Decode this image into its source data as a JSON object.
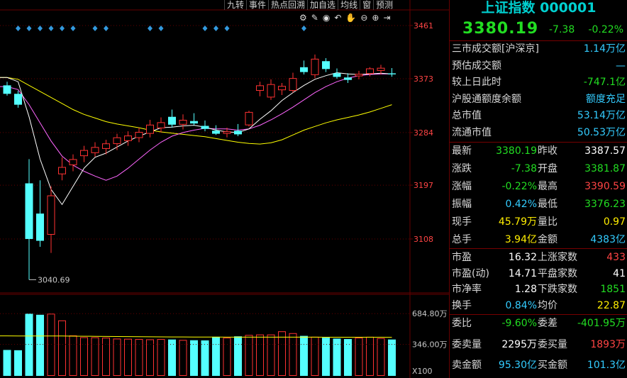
{
  "toolbar": {
    "items": [
      "九转",
      "事件",
      "热点回溯",
      "加自选",
      "均线",
      "窗",
      "预测"
    ]
  },
  "icons": [
    "settings-icon",
    "draw-icon",
    "eye-icon",
    "undo-icon",
    "hand-icon",
    "zoom-out-icon",
    "zoom-in-icon",
    "exit-icon"
  ],
  "colors": {
    "up": "#ff3232",
    "down": "#54ffff",
    "ma5": "#ffffff",
    "ma10": "#ff66ff",
    "ma20": "#ffff00",
    "vol_ma": "#ffff00",
    "grid": "#660000",
    "label": "#ff4444",
    "marker": "#3399dd"
  },
  "chart_data": {
    "type": "candlestick",
    "yticks": [
      3461,
      3373,
      3284,
      3197,
      3108
    ],
    "ylim": [
      3020,
      3475
    ],
    "annotation_low": "3040.69",
    "candles": [
      {
        "o": 3362,
        "h": 3368,
        "l": 3345,
        "c": 3348
      },
      {
        "o": 3348,
        "h": 3353,
        "l": 3325,
        "c": 3330
      },
      {
        "o": 3200,
        "h": 3240,
        "l": 3040.69,
        "c": 3108
      },
      {
        "o": 3150,
        "h": 3205,
        "l": 3095,
        "c": 3105
      },
      {
        "o": 3115,
        "h": 3195,
        "l": 3085,
        "c": 3180
      },
      {
        "o": 3215,
        "h": 3243,
        "l": 3205,
        "c": 3227
      },
      {
        "o": 3230,
        "h": 3248,
        "l": 3220,
        "c": 3240
      },
      {
        "o": 3245,
        "h": 3262,
        "l": 3235,
        "c": 3255
      },
      {
        "o": 3250,
        "h": 3268,
        "l": 3244,
        "c": 3260
      },
      {
        "o": 3257,
        "h": 3272,
        "l": 3248,
        "c": 3266
      },
      {
        "o": 3265,
        "h": 3282,
        "l": 3255,
        "c": 3276
      },
      {
        "o": 3270,
        "h": 3286,
        "l": 3262,
        "c": 3279
      },
      {
        "o": 3275,
        "h": 3292,
        "l": 3268,
        "c": 3285
      },
      {
        "o": 3282,
        "h": 3305,
        "l": 3276,
        "c": 3297
      },
      {
        "o": 3291,
        "h": 3309,
        "l": 3284,
        "c": 3301
      },
      {
        "o": 3310,
        "h": 3322,
        "l": 3292,
        "c": 3297
      },
      {
        "o": 3297,
        "h": 3314,
        "l": 3289,
        "c": 3305
      },
      {
        "o": 3303,
        "h": 3316,
        "l": 3296,
        "c": 3299
      },
      {
        "o": 3295,
        "h": 3304,
        "l": 3286,
        "c": 3290
      },
      {
        "o": 3287,
        "h": 3296,
        "l": 3280,
        "c": 3282
      },
      {
        "o": 3282,
        "h": 3292,
        "l": 3276,
        "c": 3286
      },
      {
        "o": 3287,
        "h": 3298,
        "l": 3278,
        "c": 3281
      },
      {
        "o": 3296,
        "h": 3320,
        "l": 3294,
        "c": 3318
      },
      {
        "o": 3353,
        "h": 3368,
        "l": 3344,
        "c": 3362
      },
      {
        "o": 3342,
        "h": 3372,
        "l": 3338,
        "c": 3364
      },
      {
        "o": 3354,
        "h": 3366,
        "l": 3346,
        "c": 3361
      },
      {
        "o": 3353,
        "h": 3383,
        "l": 3350,
        "c": 3374
      },
      {
        "o": 3392,
        "h": 3403,
        "l": 3380,
        "c": 3384
      },
      {
        "o": 3379,
        "h": 3413,
        "l": 3374,
        "c": 3406
      },
      {
        "o": 3402,
        "h": 3407,
        "l": 3384,
        "c": 3389
      },
      {
        "o": 3382,
        "h": 3390,
        "l": 3373,
        "c": 3376
      },
      {
        "o": 3375,
        "h": 3382,
        "l": 3366,
        "c": 3371
      },
      {
        "o": 3377,
        "h": 3386,
        "l": 3372,
        "c": 3381
      },
      {
        "o": 3381,
        "h": 3392,
        "l": 3377,
        "c": 3390
      },
      {
        "o": 3386,
        "h": 3396,
        "l": 3380,
        "c": 3391
      },
      {
        "o": 3381.87,
        "h": 3390.59,
        "l": 3376.23,
        "c": 3380.19
      }
    ],
    "ma5": [
      3375,
      3368,
      3310,
      3240,
      3190,
      3165,
      3195,
      3225,
      3243,
      3250,
      3260,
      3270,
      3278,
      3285,
      3292,
      3293,
      3295,
      3296,
      3293,
      3288,
      3285,
      3284,
      3290,
      3306,
      3320,
      3337,
      3350,
      3362,
      3372,
      3378,
      3383,
      3381,
      3380,
      3381,
      3382,
      3381
    ],
    "ma10": [
      3360,
      3355,
      3330,
      3300,
      3270,
      3245,
      3230,
      3220,
      3212,
      3205,
      3212,
      3225,
      3240,
      3255,
      3268,
      3278,
      3284,
      3288,
      3291,
      3290,
      3290,
      3288,
      3290,
      3296,
      3305,
      3315,
      3326,
      3338,
      3350,
      3360,
      3368,
      3374,
      3378,
      3380,
      3381,
      3381
    ],
    "ma20": [
      3375,
      3372,
      3362,
      3352,
      3342,
      3332,
      3322,
      3314,
      3308,
      3302,
      3298,
      3295,
      3292,
      3288,
      3285,
      3283,
      3281,
      3279,
      3277,
      3274,
      3271,
      3268,
      3266,
      3265,
      3267,
      3272,
      3280,
      3288,
      3294,
      3300,
      3305,
      3309,
      3313,
      3318,
      3324,
      3330
    ],
    "markers": [
      1,
      2,
      3,
      4,
      5,
      6,
      8,
      9,
      13,
      14,
      18,
      19,
      20,
      27
    ],
    "volume": {
      "labels": [
        "684.80万",
        "346.00万"
      ],
      "multiplier": "X100",
      "values": [
        285,
        282,
        684,
        672,
        684,
        610,
        445,
        425,
        424,
        420,
        410,
        408,
        405,
        402,
        405,
        400,
        395,
        392,
        390,
        430,
        420,
        435,
        450,
        455,
        455,
        490,
        470,
        440,
        430,
        420,
        410,
        405,
        420,
        430,
        415,
        400
      ],
      "ma": [
        440,
        438,
        438,
        438,
        438,
        438,
        437,
        436,
        435,
        434,
        433,
        432,
        431,
        430,
        429,
        428,
        428,
        427,
        427,
        427,
        426,
        426,
        426,
        426,
        426,
        426,
        426,
        426,
        426,
        425,
        425,
        425,
        425,
        425,
        425,
        424
      ],
      "ylim": [
        0,
        780
      ]
    }
  },
  "panel": {
    "title": "上证指数 000001",
    "price": "3380.19",
    "change": "-7.38",
    "pct": "-0.22%",
    "info": [
      {
        "label": "三市成交额[沪深京]",
        "value": "1.14万亿",
        "color": "cyan"
      },
      {
        "label": "预估成交额",
        "value": "—",
        "color": "cyan"
      },
      {
        "label": "较上日此时",
        "value": "-747.1亿",
        "color": "green"
      },
      {
        "label": "沪股通额度余额",
        "value": "额度充足",
        "color": "cyan"
      },
      {
        "label": "总市值",
        "value": "53.14万亿",
        "color": "cyan"
      },
      {
        "label": "流通市值",
        "value": "50.53万亿",
        "color": "cyan"
      }
    ],
    "quotes": [
      {
        "l1": "最新",
        "v1": "3380.19",
        "c1": "green",
        "l2": "昨收",
        "v2": "3387.57",
        "c2": "white"
      },
      {
        "l1": "涨跌",
        "v1": "-7.38",
        "c1": "green",
        "l2": "开盘",
        "v2": "3381.87",
        "c2": "green"
      },
      {
        "l1": "涨幅",
        "v1": "-0.22%",
        "c1": "green",
        "l2": "最高",
        "v2": "3390.59",
        "c2": "red"
      },
      {
        "l1": "振幅",
        "v1": "0.42%",
        "c1": "cyan",
        "l2": "最低",
        "v2": "3376.23",
        "c2": "green"
      },
      {
        "l1": "现手",
        "v1": "45.79万",
        "c1": "yel",
        "l2": "量比",
        "v2": "0.97",
        "c2": "yel"
      },
      {
        "l1": "总手",
        "v1": "3.94亿",
        "c1": "yel",
        "l2": "金额",
        "v2": "4383亿",
        "c2": "cyan"
      }
    ],
    "stats": [
      {
        "l1": "市盈",
        "v1": "16.32",
        "c1": "white",
        "l2": "上涨家数",
        "v2": "433",
        "c2": "red"
      },
      {
        "l1": "市盈(动)",
        "v1": "14.71",
        "c1": "white",
        "l2": "平盘家数",
        "v2": "41",
        "c2": "white"
      },
      {
        "l1": "市净率",
        "v1": "1.28",
        "c1": "white",
        "l2": "下跌家数",
        "v2": "1851",
        "c2": "green"
      },
      {
        "l1": "换手",
        "v1": "0.84%",
        "c1": "cyan",
        "l2": "均价",
        "v2": "22.87",
        "c2": "yel"
      }
    ],
    "orders": [
      {
        "l1": "委比",
        "v1": "-9.60%",
        "c1": "green",
        "l2": "委差",
        "v2": "-401.95万",
        "c2": "green"
      },
      {
        "l1": "委卖量",
        "v1": "2295万",
        "c1": "white",
        "l2": "委买量",
        "v2": "1893万",
        "c2": "red"
      },
      {
        "l1": "卖金额",
        "v1": "95.30亿",
        "c1": "cyan",
        "l2": "买金额",
        "v2": "101.3亿",
        "c2": "cyan"
      }
    ]
  }
}
